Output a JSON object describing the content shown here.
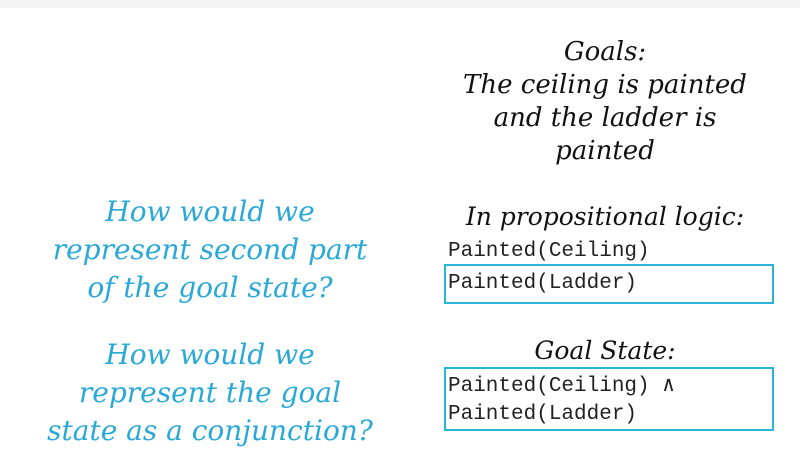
{
  "goals": {
    "heading": "Goals:",
    "lines": [
      "The ceiling is painted",
      "and the ladder is",
      "painted"
    ]
  },
  "propositional": {
    "heading": "In propositional logic:",
    "line1": "Painted(Ceiling)",
    "line2": "Painted(Ladder)"
  },
  "goal_state": {
    "heading": "Goal State:",
    "line1": "Painted(Ceiling) ∧",
    "line2": "Painted(Ladder)"
  },
  "questions": {
    "q1": [
      "How would we",
      "represent second part",
      "of the goal state?"
    ],
    "q2": [
      "How would we",
      "represent the goal",
      "state as a conjunction?"
    ]
  },
  "colors": {
    "question_text": "#2aa8d8",
    "box_border": "#2ab4d8",
    "handwriting": "#111111"
  }
}
